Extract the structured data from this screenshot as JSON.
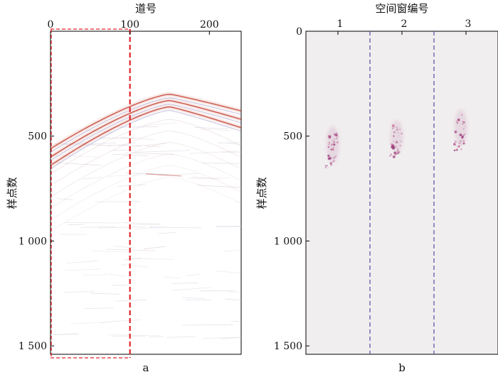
{
  "chart_data": [
    {
      "type": "heatmap",
      "panel_label": "a",
      "title": "",
      "xlabel": "道号",
      "ylabel": "样点数",
      "xlim": [
        0,
        240
      ],
      "ylim": [
        1540,
        0
      ],
      "x_ticks": [
        0,
        100,
        200
      ],
      "x_tick_labels": [
        "0",
        "100",
        "200"
      ],
      "y_ticks": [
        500,
        1000,
        1500
      ],
      "y_tick_labels": [
        "500",
        "1 000",
        "1 500"
      ],
      "x_axis_position": "top",
      "colors": {
        "reflection": "#c0392b",
        "secondary": "#6b6fb5",
        "marker": "#e0242a"
      },
      "marked_region": {
        "x": [
          0,
          100
        ],
        "y": [
          0,
          1540
        ],
        "style": "dashed"
      },
      "events": [
        {
          "name": "reflection-1",
          "apex_x": 150,
          "apex_y": 300,
          "left_y": 560,
          "right_y": 380
        },
        {
          "name": "reflection-2",
          "apex_x": 150,
          "apex_y": 330,
          "left_y": 600,
          "right_y": 420
        },
        {
          "name": "reflection-3",
          "apex_x": 150,
          "apex_y": 360,
          "left_y": 640,
          "right_y": 460
        }
      ]
    },
    {
      "type": "heatmap",
      "panel_label": "b",
      "title": "",
      "xlabel": "空间窗编号",
      "ylabel": "样点数",
      "xlim": [
        0.5,
        3.5
      ],
      "ylim": [
        1540,
        0
      ],
      "x_ticks": [
        1,
        2,
        3
      ],
      "x_tick_labels": [
        "1",
        "2",
        "3"
      ],
      "y_ticks": [
        0,
        500,
        1000,
        1500
      ],
      "y_tick_labels": [
        "0",
        "500",
        "1 000",
        "1 500"
      ],
      "x_axis_position": "top",
      "colors": {
        "background": "#f1eeef",
        "separator": "#5a5aa8",
        "energy": "#9a3a7a"
      },
      "separators": [
        1.5,
        2.5
      ],
      "energy_clusters": [
        {
          "window": 1,
          "y_center": 540,
          "y_spread": 80
        },
        {
          "window": 2,
          "y_center": 500,
          "y_spread": 70
        },
        {
          "window": 3,
          "y_center": 460,
          "y_spread": 80
        }
      ]
    }
  ]
}
